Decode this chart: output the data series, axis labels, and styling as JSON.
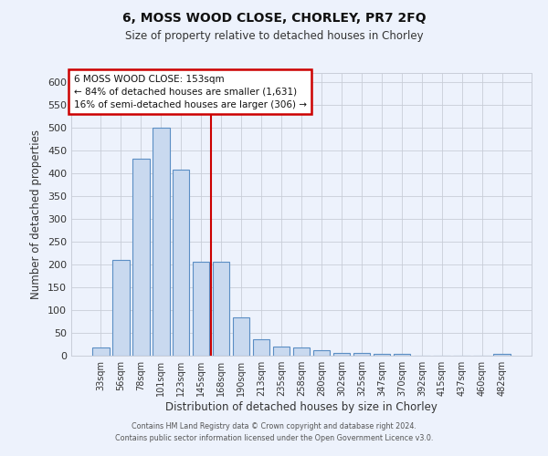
{
  "title1": "6, MOSS WOOD CLOSE, CHORLEY, PR7 2FQ",
  "title2": "Size of property relative to detached houses in Chorley",
  "xlabel": "Distribution of detached houses by size in Chorley",
  "ylabel": "Number of detached properties",
  "bar_labels": [
    "33sqm",
    "56sqm",
    "78sqm",
    "101sqm",
    "123sqm",
    "145sqm",
    "168sqm",
    "190sqm",
    "213sqm",
    "235sqm",
    "258sqm",
    "280sqm",
    "302sqm",
    "325sqm",
    "347sqm",
    "370sqm",
    "392sqm",
    "415sqm",
    "437sqm",
    "460sqm",
    "482sqm"
  ],
  "bar_values": [
    18,
    210,
    432,
    500,
    408,
    207,
    207,
    85,
    37,
    20,
    18,
    13,
    6,
    6,
    5,
    5,
    0,
    0,
    0,
    0,
    5
  ],
  "bar_color": "#c9d9ef",
  "bar_edge_color": "#5b8ec4",
  "grid_color": "#c8cdd8",
  "bg_color": "#edf2fc",
  "vline_x": 5.5,
  "vline_color": "#cc0000",
  "annotation_text": "6 MOSS WOOD CLOSE: 153sqm\n← 84% of detached houses are smaller (1,631)\n16% of semi-detached houses are larger (306) →",
  "annotation_box_color": "#ffffff",
  "annotation_box_edge": "#cc0000",
  "ylim": [
    0,
    620
  ],
  "yticks": [
    0,
    50,
    100,
    150,
    200,
    250,
    300,
    350,
    400,
    450,
    500,
    550,
    600
  ],
  "footer1": "Contains HM Land Registry data © Crown copyright and database right 2024.",
  "footer2": "Contains public sector information licensed under the Open Government Licence v3.0."
}
